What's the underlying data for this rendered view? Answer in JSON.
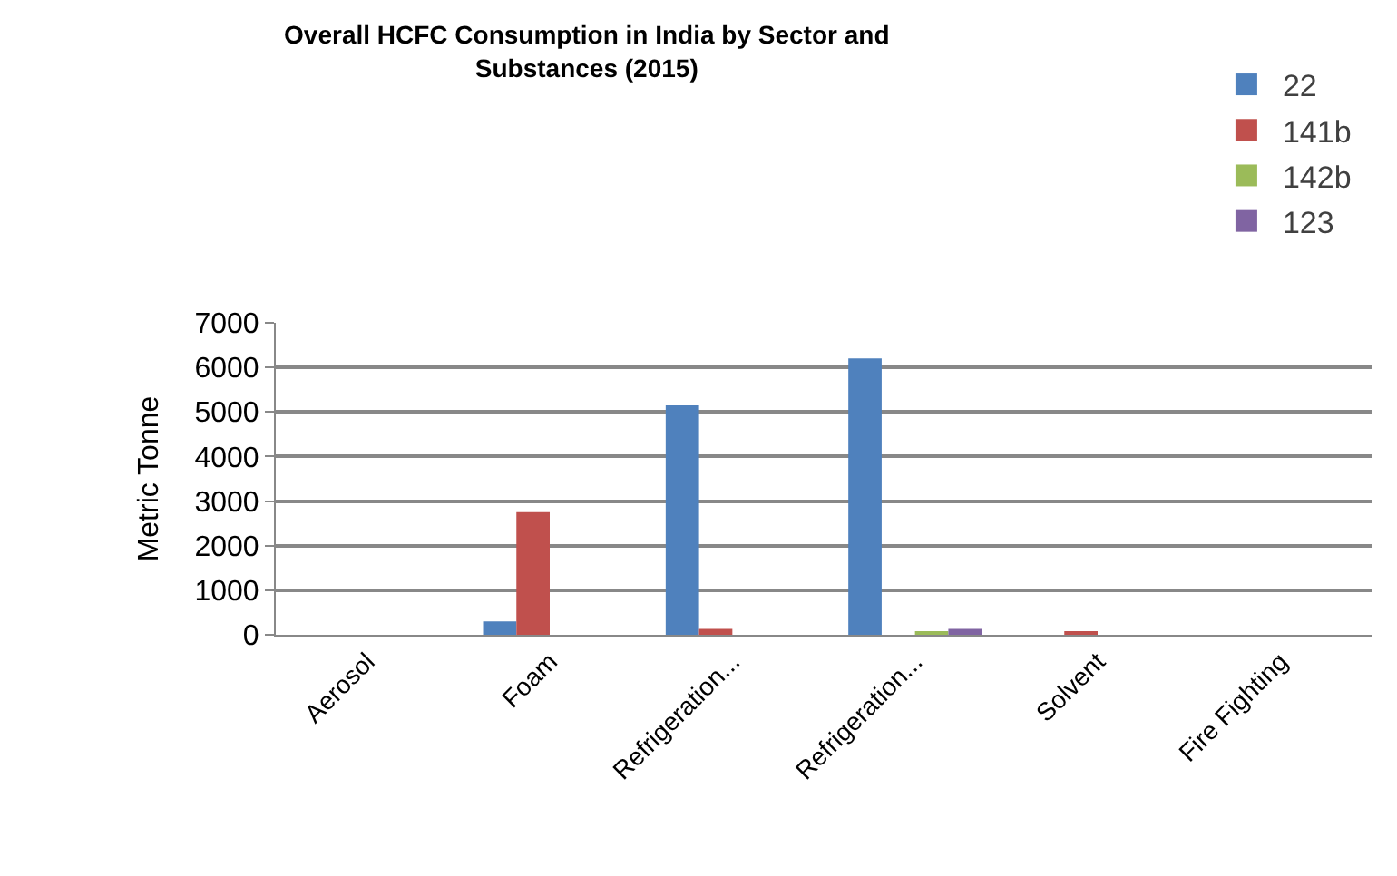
{
  "chart_data": {
    "type": "bar",
    "title": "Overall HCFC Consumption in India by Sector and Substances (2015)",
    "ylabel": "Metric Tonne",
    "categories": [
      "Aerosol",
      "Foam",
      "Refrigeration...",
      "Refrigeration...",
      "Solvent",
      "Fire Fighting"
    ],
    "series": [
      {
        "name": "22",
        "color": "#4f81bd",
        "values": [
          0,
          300,
          5150,
          6200,
          0,
          0
        ]
      },
      {
        "name": "141b",
        "color": "#c0504d",
        "values": [
          0,
          2750,
          130,
          0,
          80,
          0
        ]
      },
      {
        "name": "142b",
        "color": "#9bbb59",
        "values": [
          0,
          0,
          0,
          60,
          0,
          0
        ]
      },
      {
        "name": "123",
        "color": "#8064a2",
        "values": [
          0,
          0,
          0,
          130,
          0,
          0
        ]
      }
    ],
    "ylim": [
      0,
      7000
    ],
    "yticks": [
      0,
      1000,
      2000,
      3000,
      4000,
      5000,
      6000,
      7000
    ],
    "grid": "y",
    "legend": "top right"
  }
}
